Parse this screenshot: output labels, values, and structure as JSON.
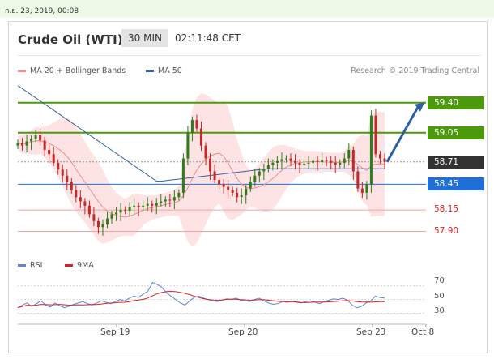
{
  "header": {
    "timestamp": "ก.ย. 23, 2019, 00:08"
  },
  "instrument": {
    "title": "Crude Oil (WTI)",
    "timeframe": "30 MIN",
    "time": "02:11:48 CET"
  },
  "legend": [
    {
      "label": "MA 20 + Bollinger Bands",
      "color": "#f08c8c"
    },
    {
      "label": "MA 50",
      "color": "#34609e"
    }
  ],
  "credit": "Research © 2019 Trading Central",
  "levels": [
    {
      "label": "59.40",
      "value": 59.4,
      "style": "tag",
      "color": "#4a9a0c",
      "text_color": "#ffffff"
    },
    {
      "label": "59.05",
      "value": 59.05,
      "style": "tag",
      "color": "#4a9a0c",
      "text_color": "#ffffff"
    },
    {
      "label": "58.71",
      "value": 58.71,
      "style": "tag",
      "color": "#333333",
      "text_color": "#ffffff"
    },
    {
      "label": "58.45",
      "value": 58.45,
      "style": "tag",
      "color": "#1e6fd9",
      "text_color": "#ffffff"
    },
    {
      "label": "58.15",
      "value": 58.15,
      "style": "plain",
      "color": "#f4a3a3",
      "text_color": "#e02020"
    },
    {
      "label": "57.90",
      "value": 57.9,
      "style": "plain",
      "color": "#f4a3a3",
      "text_color": "#e02020"
    }
  ],
  "rsi_legend": [
    {
      "label": "RSI",
      "color": "#5b86d6"
    },
    {
      "label": "9MA",
      "color": "#e02020"
    }
  ],
  "rsi_axis": [
    "70",
    "50",
    "30"
  ],
  "x_ticks": [
    "Sep 19",
    "Sep 20",
    "Sep 23",
    "Oct 8"
  ],
  "chart_data": {
    "type": "candlestick",
    "title": "Crude Oil (WTI)",
    "timeframe": "30 MIN",
    "price_range": [
      57.65,
      59.7
    ],
    "close_series": [
      58.93,
      58.9,
      58.95,
      58.98,
      59.02,
      58.96,
      58.85,
      58.8,
      58.7,
      58.62,
      58.55,
      58.48,
      58.38,
      58.3,
      58.25,
      58.2,
      58.1,
      58.02,
      57.95,
      57.98,
      58.05,
      58.1,
      58.12,
      58.15,
      58.14,
      58.18,
      58.2,
      58.18,
      58.2,
      58.22,
      58.2,
      58.23,
      58.25,
      58.27,
      58.26,
      58.3,
      58.35,
      58.75,
      59.05,
      59.2,
      59.1,
      58.9,
      58.75,
      58.6,
      58.5,
      58.45,
      58.42,
      58.38,
      58.35,
      58.3,
      58.32,
      58.4,
      58.48,
      58.55,
      58.6,
      58.63,
      58.67,
      58.7,
      58.72,
      58.74,
      58.75,
      58.72,
      58.7,
      58.68,
      58.69,
      58.7,
      58.72,
      58.71,
      58.73,
      58.72,
      58.7,
      58.68,
      58.7,
      58.75,
      58.85,
      58.6,
      58.4,
      58.35,
      58.45,
      59.25,
      58.8,
      58.75,
      58.71
    ],
    "ma50_description": "declining from ~59.6 at left to ~58.48, then flattening near 58.6",
    "rsi": {
      "values": [
        38,
        42,
        45,
        40,
        44,
        48,
        42,
        39,
        45,
        41,
        38,
        40,
        43,
        45,
        47,
        44,
        42,
        45,
        48,
        46,
        44,
        47,
        50,
        48,
        52,
        55,
        53,
        58,
        62,
        75,
        72,
        68,
        60,
        55,
        50,
        45,
        42,
        48,
        53,
        55,
        52,
        50,
        48,
        47,
        49,
        51,
        50,
        52,
        49,
        48,
        47,
        50,
        52,
        48,
        45,
        43,
        44,
        47,
        46,
        47,
        46,
        45,
        47,
        48,
        46,
        44,
        47,
        49,
        51,
        50,
        52,
        49,
        42,
        38,
        40,
        45,
        48,
        55,
        53,
        52
      ],
      "levels": [
        70,
        50,
        30
      ]
    },
    "x_ticks": [
      "Sep 19",
      "Sep 20",
      "Sep 23",
      "Oct 8"
    ]
  }
}
